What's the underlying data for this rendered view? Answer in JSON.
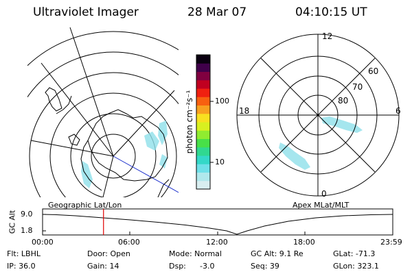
{
  "header": {
    "title": "Ultraviolet Imager",
    "date": "28 Mar 07",
    "time": "04:10:15 UT"
  },
  "left_map": {
    "caption": "Geographic Lat/Lon"
  },
  "right_map": {
    "caption": "Apex MLat/MLT",
    "mlt_labels": {
      "top": "12",
      "left": "18",
      "right": "6",
      "bottom": "0"
    },
    "lat_labels": [
      "60",
      "70",
      "80"
    ]
  },
  "colorbar": {
    "label": "photon cm⁻²s⁻¹",
    "ticks": [
      "100",
      "10"
    ],
    "colors": [
      "#d8eef0",
      "#b0e8ec",
      "#6ee0e8",
      "#34d8c8",
      "#30d890",
      "#48e048",
      "#90ec30",
      "#d8f020",
      "#f8e020",
      "#f8a020",
      "#f86010",
      "#f02010",
      "#c00020",
      "#800040",
      "#40004a",
      "#0a0010"
    ]
  },
  "timeline": {
    "ylabel": "GC Alt",
    "ytick_top": "9.0",
    "ytick_bottom": "1.8",
    "xticks": [
      "00:00",
      "06:00",
      "12:00",
      "18:00",
      "23:59"
    ],
    "current_time_fraction": 0.174
  },
  "info": {
    "flt": "Flt: LBHL",
    "door": "Door: Open",
    "mode": "Mode: Normal",
    "gc_alt": "GC Alt: 9.1 Re",
    "glat": "GLat: -71.3",
    "ip": "IP: 36.0",
    "gain": "Gain: 14",
    "dsp_label": "Dsp:",
    "dsp_value": "-3.0",
    "seq": "Seq: 39",
    "glon": "GLon: 323.1"
  }
}
